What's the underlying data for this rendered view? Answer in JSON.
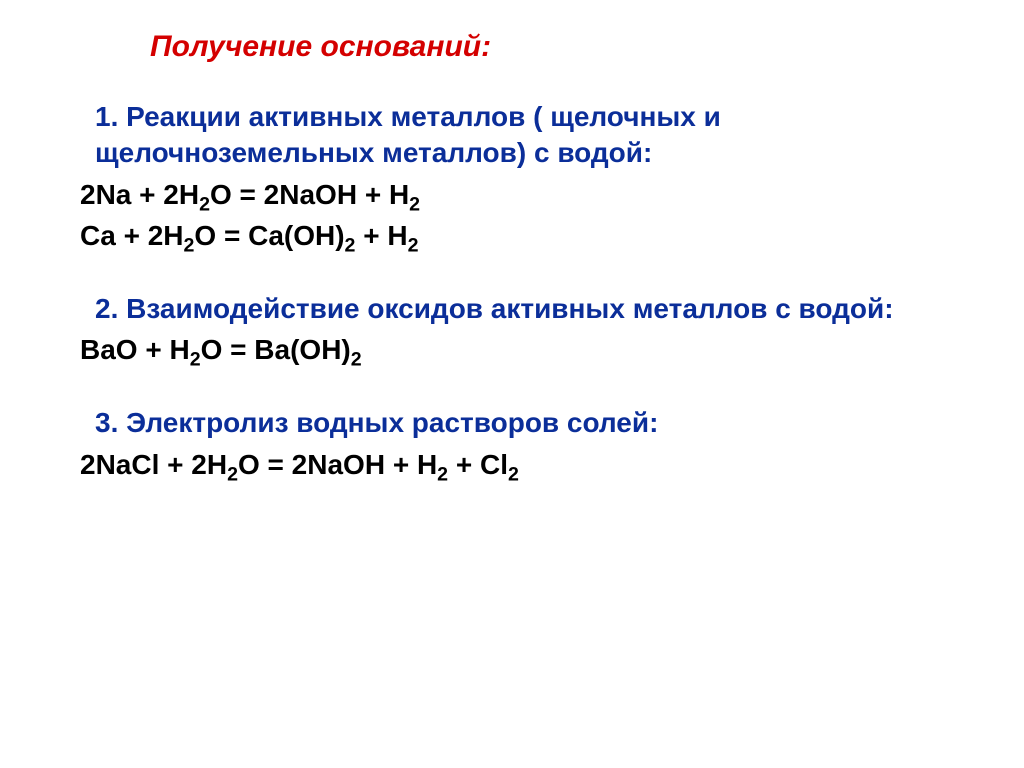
{
  "slide": {
    "title": "Получение оснований:",
    "title_color": "#d40000",
    "heading_color": "#0b2e99",
    "equation_color": "#000000",
    "background_color": "#ffffff",
    "title_fontsize": 30,
    "heading_fontsize": 28,
    "equation_fontsize": 28,
    "font_family": "Arial"
  },
  "sections": [
    {
      "heading": "1. Реакции активных металлов ( щелочных и щелочноземельных металлов) с водой:",
      "equations": [
        "2Na + 2H₂O = 2NaOH + H₂",
        "Ca + 2H₂O = Ca(OH)₂ + H₂"
      ]
    },
    {
      "heading": "2. Взаимодействие оксидов активных металлов с водой:",
      "equations": [
        "BaO + H₂O = Ba(OH)₂"
      ]
    },
    {
      "heading": "3. Электролиз водных растворов солей:",
      "equations": [
        "2NaCl + 2H₂O = 2NaOH + H₂ + Cl₂"
      ]
    }
  ]
}
